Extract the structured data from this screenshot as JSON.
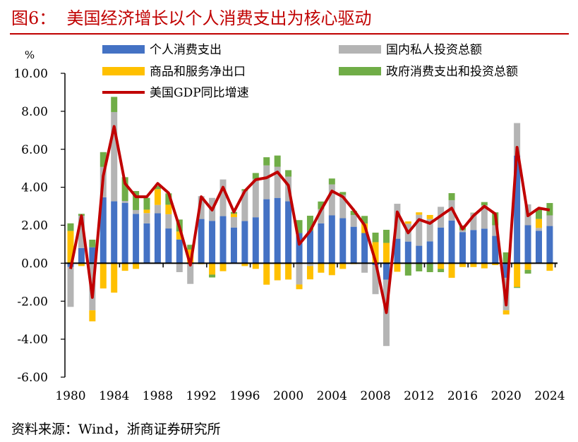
{
  "title": "图6：  美国经济增长以个人消费支出为核心驱动",
  "source": "资料来源：Wind，浙商证券研究所",
  "chart_data": {
    "type": "bar",
    "stacked": true,
    "unit_label": "%",
    "ylim": [
      -6,
      10
    ],
    "yticks": [
      "10.00",
      "8.00",
      "6.00",
      "4.00",
      "2.00",
      "0.00",
      "-2.00",
      "-4.00",
      "-6.00"
    ],
    "xticks": [
      "1980",
      "1984",
      "1988",
      "1992",
      "1996",
      "2000",
      "2004",
      "2008",
      "2012",
      "2016",
      "2020",
      "2024"
    ],
    "grid": false,
    "legend_position": "top",
    "categories": [
      1980,
      1981,
      1982,
      1983,
      1984,
      1985,
      1986,
      1987,
      1988,
      1989,
      1990,
      1991,
      1992,
      1993,
      1994,
      1995,
      1996,
      1997,
      1998,
      1999,
      2000,
      2001,
      2002,
      2003,
      2004,
      2005,
      2006,
      2007,
      2008,
      2009,
      2010,
      2011,
      2012,
      2013,
      2014,
      2015,
      2016,
      2017,
      2018,
      2019,
      2020,
      2021,
      2022,
      2023,
      2024
    ],
    "series": [
      {
        "name": "个人消费支出",
        "color": "#4472c4",
        "kind": "bar",
        "values": [
          -0.2,
          0.8,
          0.84,
          3.47,
          3.26,
          3.18,
          2.6,
          2.1,
          2.63,
          1.83,
          1.25,
          0.0,
          2.33,
          2.23,
          2.48,
          1.88,
          2.22,
          2.42,
          3.37,
          3.44,
          3.26,
          1.59,
          1.71,
          2.1,
          2.52,
          2.37,
          1.92,
          1.59,
          -0.1,
          -0.87,
          1.29,
          1.14,
          0.92,
          1.15,
          1.88,
          2.25,
          1.64,
          1.75,
          1.82,
          1.44,
          -0.77,
          5.67,
          2.0,
          1.71,
          1.96
        ]
      },
      {
        "name": "国内私人投资总额",
        "color": "#b4b4b4",
        "kind": "bar",
        "values": [
          -2.1,
          1.7,
          -2.48,
          1.6,
          4.7,
          0.1,
          0.2,
          0.54,
          0.44,
          0.75,
          -0.47,
          -1.09,
          1.2,
          1.21,
          1.93,
          0.55,
          1.6,
          2.02,
          1.78,
          1.64,
          1.3,
          -1.12,
          -0.15,
          0.75,
          1.63,
          1.23,
          0.62,
          -0.5,
          -1.53,
          -3.49,
          1.84,
          0.94,
          1.63,
          1.18,
          1.09,
          1.07,
          0.1,
          0.89,
          1.23,
          0.56,
          -1.71,
          1.71,
          1.1,
          0.15,
          0.56
        ]
      },
      {
        "name": "商品和服务净出口",
        "color": "#ffc000",
        "kind": "bar",
        "values": [
          1.7,
          -0.15,
          -0.58,
          -1.33,
          -1.55,
          -0.4,
          -0.3,
          0.18,
          0.83,
          0.5,
          0.42,
          0.72,
          -0.05,
          -0.6,
          -0.42,
          0.17,
          -0.15,
          -0.3,
          -1.13,
          -0.9,
          -0.86,
          -0.25,
          -0.7,
          -0.5,
          -0.63,
          -0.3,
          -0.05,
          0.5,
          1.11,
          1.07,
          -0.45,
          0.12,
          0.13,
          0.21,
          -0.3,
          -0.77,
          -0.2,
          -0.2,
          -0.27,
          -0.1,
          -0.22,
          -1.25,
          -0.35,
          0.47,
          -0.4
        ]
      },
      {
        "name": "政府消费支出和投资总额",
        "color": "#70ad47",
        "kind": "bar",
        "values": [
          0.4,
          0.1,
          0.4,
          0.78,
          0.8,
          1.25,
          1.0,
          0.62,
          0.16,
          0.6,
          0.63,
          0.25,
          0.0,
          -0.15,
          0.0,
          0.1,
          0.08,
          0.31,
          0.43,
          0.59,
          0.34,
          0.68,
          0.79,
          0.4,
          0.31,
          0.15,
          0.22,
          0.4,
          0.5,
          0.69,
          0.0,
          -0.65,
          -0.43,
          -0.47,
          -0.17,
          0.37,
          0.25,
          0.02,
          0.17,
          0.68,
          0.57,
          -0.05,
          -0.2,
          0.5,
          0.65
        ]
      },
      {
        "name": "美国GDP同比增速",
        "color": "#c00000",
        "kind": "line",
        "values": [
          -0.3,
          2.5,
          -1.8,
          4.6,
          7.2,
          4.2,
          3.5,
          3.5,
          4.2,
          3.7,
          1.9,
          -0.1,
          3.5,
          2.8,
          4.0,
          2.7,
          3.8,
          4.4,
          4.5,
          4.8,
          4.1,
          1.0,
          1.7,
          2.8,
          3.8,
          3.5,
          2.8,
          2.0,
          0.1,
          -2.6,
          2.7,
          1.6,
          2.3,
          2.1,
          2.5,
          2.9,
          1.8,
          2.5,
          3.0,
          2.6,
          -2.2,
          6.1,
          2.5,
          2.9,
          2.8
        ]
      }
    ]
  }
}
